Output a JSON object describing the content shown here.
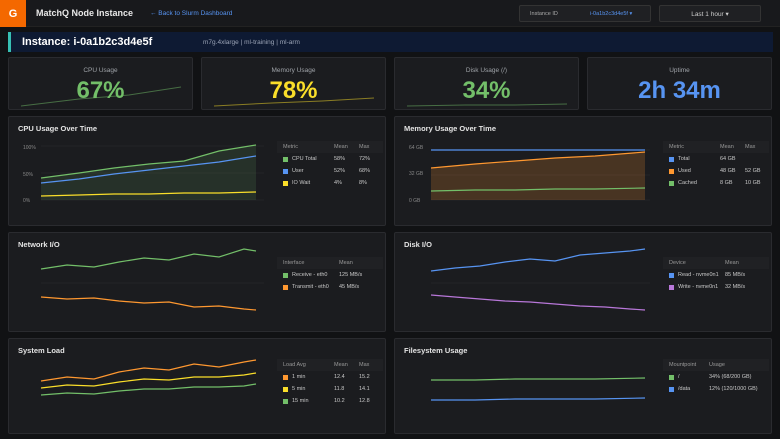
{
  "topbar": {
    "logo": "G",
    "title": "MatchQ Node Instance",
    "back_link": "← Back to Slurm Dashboard",
    "instance_label": "Instance ID",
    "instance_value": "i-0a1b2c3d4e5f ▾",
    "time_range": "Last 1 hour ▾"
  },
  "header": {
    "title": "Instance: i-0a1b2c3d4e5f",
    "subtitle": "m7g.4xlarge | ml-training | ml-arm"
  },
  "stats": [
    {
      "label": "CPU Usage",
      "value": "67%",
      "color": "#73bf69"
    },
    {
      "label": "Memory Usage",
      "value": "78%",
      "color": "#fade2a"
    },
    {
      "label": "Disk Usage (/)",
      "value": "34%",
      "color": "#73bf69"
    },
    {
      "label": "Uptime",
      "value": "2h 34m",
      "color": "#5794f2"
    }
  ],
  "panels": {
    "cpu": {
      "title": "CPU Usage Over Time",
      "y_ticks": [
        "100%",
        "50%",
        "0%"
      ],
      "legend_headers": [
        "Metric",
        "Mean",
        "Max"
      ],
      "legend": [
        {
          "name": "CPU Total",
          "mean": "58%",
          "max": "72%",
          "color": "#73bf69"
        },
        {
          "name": "User",
          "mean": "52%",
          "max": "68%",
          "color": "#5794f2"
        },
        {
          "name": "IO Wait",
          "mean": "4%",
          "max": "8%",
          "color": "#fade2a"
        }
      ]
    },
    "memory": {
      "title": "Memory Usage Over Time",
      "y_ticks": [
        "64 GB",
        "32 GB",
        "0 GB"
      ],
      "legend_headers": [
        "Metric",
        "Mean",
        "Max"
      ],
      "legend": [
        {
          "name": "Total",
          "mean": "64 GB",
          "max": "",
          "color": "#5794f2"
        },
        {
          "name": "Used",
          "mean": "48 GB",
          "max": "52 GB",
          "color": "#ff9830"
        },
        {
          "name": "Cached",
          "mean": "8 GB",
          "max": "10 GB",
          "color": "#73bf69"
        }
      ]
    },
    "network": {
      "title": "Network I/O",
      "legend_headers": [
        "Interface",
        "Mean"
      ],
      "legend": [
        {
          "name": "Receive - eth0",
          "mean": "125 MB/s",
          "color": "#73bf69"
        },
        {
          "name": "Transmit - eth0",
          "mean": "45 MB/s",
          "color": "#ff9830"
        }
      ]
    },
    "disk": {
      "title": "Disk I/O",
      "legend_headers": [
        "Device",
        "Mean"
      ],
      "legend": [
        {
          "name": "Read - nvme0n1",
          "mean": "85 MB/s",
          "color": "#5794f2"
        },
        {
          "name": "Write - nvme0n1",
          "mean": "32 MB/s",
          "color": "#b877d9"
        }
      ]
    },
    "load": {
      "title": "System Load",
      "legend_headers": [
        "Load Avg",
        "Mean",
        "Max"
      ],
      "legend": [
        {
          "name": "1 min",
          "mean": "12.4",
          "max": "15.2",
          "color": "#ff9830"
        },
        {
          "name": "5 min",
          "mean": "11.8",
          "max": "14.1",
          "color": "#fade2a"
        },
        {
          "name": "15 min",
          "mean": "10.2",
          "max": "12.8",
          "color": "#73bf69"
        }
      ]
    },
    "filesystem": {
      "title": "Filesystem Usage",
      "legend_headers": [
        "Mountpoint",
        "Usage"
      ],
      "legend": [
        {
          "name": "/",
          "mean": "34% (68/200 GB)",
          "color": "#73bf69"
        },
        {
          "name": "/data",
          "mean": "12% (120/1000 GB)",
          "color": "#5794f2"
        }
      ]
    }
  }
}
